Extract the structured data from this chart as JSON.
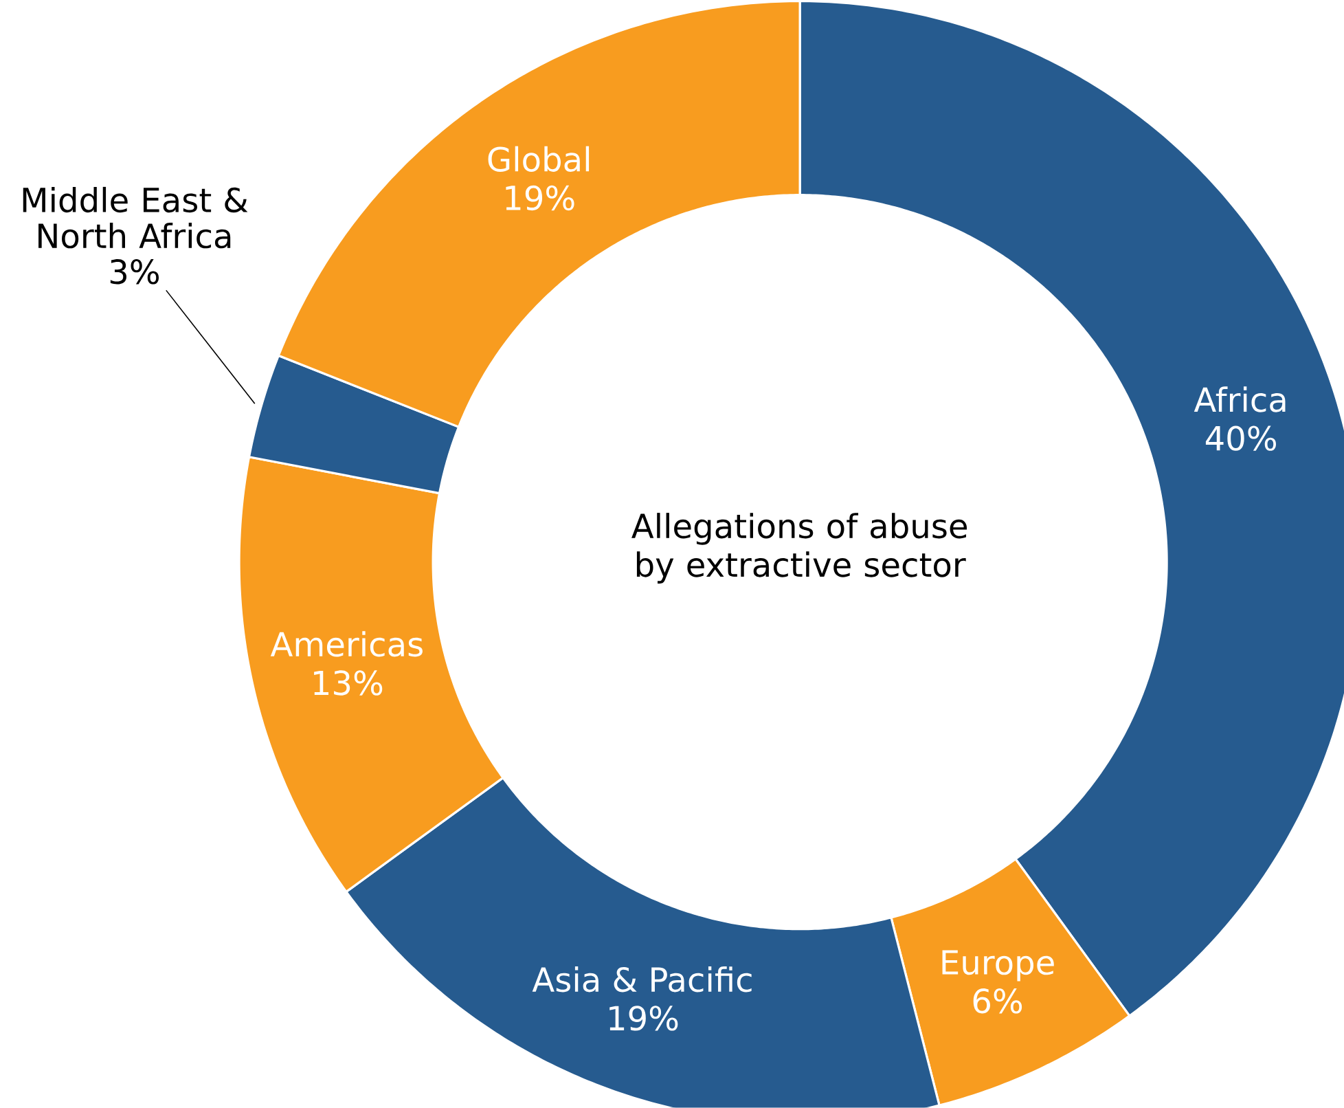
{
  "chart_data": {
    "type": "donut",
    "title": "Allegations of abuse by extractive sector",
    "categories": [
      "Africa",
      "Europe",
      "Asia & Pacific",
      "Americas",
      "Middle East & North Africa",
      "Global"
    ],
    "values": [
      40,
      6,
      19,
      13,
      3,
      19
    ],
    "value_labels": [
      "40%",
      "6%",
      "19%",
      "13%",
      "3%",
      "19%"
    ],
    "colors": [
      "#265b8f",
      "#f89c1f",
      "#265b8f",
      "#f89c1f",
      "#265b8f",
      "#f89c1f"
    ]
  }
}
